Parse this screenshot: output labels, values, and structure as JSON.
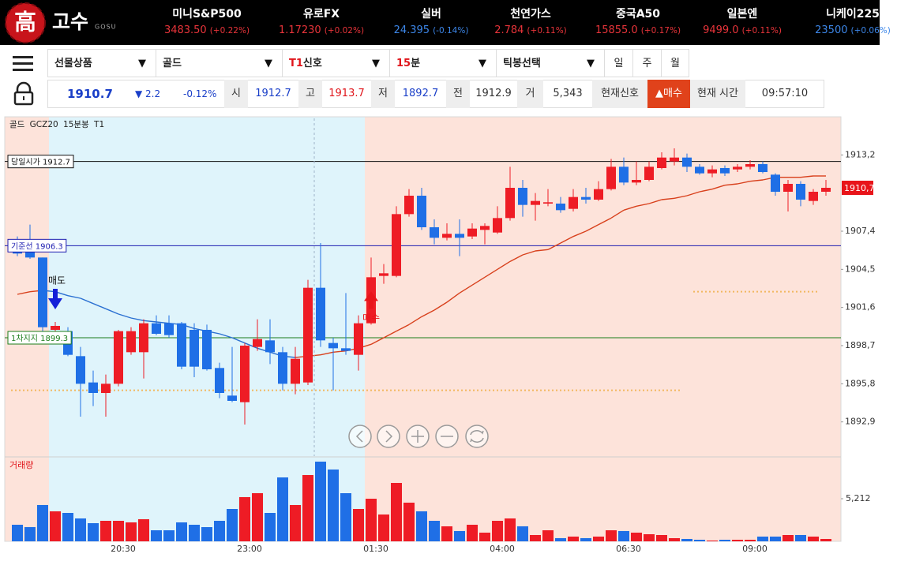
{
  "header": {
    "logo_mark": "高",
    "logo_text": "고수",
    "logo_sub": "GOSU",
    "tickers": [
      {
        "name": "미니S&P500",
        "price": "3483.50",
        "change": "(+0.22%)",
        "color": "#e8343a"
      },
      {
        "name": "유로FX",
        "price": "1.17230",
        "change": "(+0.02%)",
        "color": "#e8343a"
      },
      {
        "name": "실버",
        "price": "24.395",
        "change": "(-0.14%)",
        "color": "#3c86e8"
      },
      {
        "name": "천연가스",
        "price": "2.784",
        "change": "(+0.11%)",
        "color": "#e8343a"
      },
      {
        "name": "중국A50",
        "price": "15855.0",
        "change": "(+0.17%)",
        "color": "#e8343a"
      },
      {
        "name": "일본엔",
        "price": "9499.0",
        "change": "(+0.11%)",
        "color": "#e8343a"
      },
      {
        "name": "니케이225",
        "price": "23500",
        "change": "(+0.06%)",
        "color": "#3c86e8"
      }
    ]
  },
  "toolbar": {
    "selects": [
      {
        "text": "선물상품"
      },
      {
        "text": "골드"
      },
      {
        "accent": "T1",
        "text": "신호"
      },
      {
        "accent": "15",
        "text": "분"
      },
      {
        "text": "틱봉선택"
      }
    ],
    "periods": [
      "일",
      "주",
      "월"
    ]
  },
  "quote": {
    "price": "1910.7",
    "change": "▼ 2.2",
    "change_pct": "-0.12%",
    "fields": [
      {
        "label": "시",
        "value": "1912.7",
        "color": "#1a3fc8"
      },
      {
        "label": "고",
        "value": "1913.7",
        "color": "#e0141a"
      },
      {
        "label": "저",
        "value": "1892.7",
        "color": "#1a3fc8"
      },
      {
        "label": "전",
        "value": "1912.9",
        "color": "#333333"
      },
      {
        "label": "거",
        "value": "5,343",
        "color": "#333333"
      }
    ],
    "signal_label": "현재신호",
    "signal": "▲매수",
    "time_label": "현재 시간",
    "time": "09:57:10"
  },
  "chart_data": {
    "type": "candlestick",
    "title": "골드 GCZ20 15분봉 T1",
    "categories": [
      null,
      null,
      null,
      null,
      null,
      null,
      null,
      null,
      "20:30",
      null,
      null,
      null,
      null,
      null,
      null,
      null,
      null,
      null,
      "23:00",
      null,
      null,
      null,
      null,
      null,
      null,
      null,
      null,
      null,
      "01:30",
      null,
      null,
      null,
      null,
      null,
      null,
      null,
      null,
      null,
      "04:00",
      null,
      null,
      null,
      null,
      null,
      null,
      null,
      null,
      null,
      "06:30",
      null,
      null,
      null,
      null,
      null,
      null,
      null,
      null,
      null,
      "09:00",
      null,
      null,
      null,
      null,
      null,
      null
    ],
    "open": [
      1906.2,
      1905.9,
      1905.4,
      1899.9,
      1899.8,
      1897.9,
      1895.9,
      1895.1,
      1895.8,
      1898.2,
      1898.2,
      1900.4,
      1900.4,
      1900.4,
      1899.9,
      1899.9,
      1897.0,
      1894.9,
      1894.4,
      1898.6,
      1899.1,
      1898.2,
      1895.8,
      1895.9,
      1903.1,
      1898.9,
      1898.5,
      1898.0,
      1900.4,
      1904.0,
      1904.0,
      1908.7,
      1910.1,
      1907.7,
      1906.9,
      1907.2,
      1907.0,
      1907.5,
      1907.3,
      1908.4,
      1910.7,
      1909.4,
      1909.5,
      1909.5,
      1909.1,
      1910.0,
      1909.8,
      1910.6,
      1912.3,
      1911.1,
      1911.3,
      1912.2,
      1912.7,
      1913.0,
      1912.3,
      1911.8,
      1912.2,
      1912.1,
      1912.3,
      1912.5,
      1911.7,
      1910.4,
      1911.0,
      1909.7,
      1910.4
    ],
    "high": [
      1907.0,
      1907.9,
      1905.4,
      1900.5,
      1900.1,
      1898.6,
      1896.8,
      1896.5,
      1899.9,
      1900.1,
      1900.7,
      1901.0,
      1901.0,
      1900.5,
      1900.4,
      1900.3,
      1897.4,
      1898.6,
      1898.9,
      1900.7,
      1900.7,
      1898.6,
      1898.6,
      1903.7,
      1906.5,
      1899.3,
      1902.7,
      1901.0,
      1905.4,
      1904.9,
      1909.3,
      1910.6,
      1910.7,
      1908.3,
      1908.0,
      1908.3,
      1908.0,
      1908.0,
      1909.3,
      1912.3,
      1911.3,
      1910.3,
      1910.6,
      1910.0,
      1910.6,
      1910.7,
      1911.2,
      1912.9,
      1913.0,
      1912.7,
      1912.7,
      1913.4,
      1913.7,
      1913.3,
      1912.5,
      1912.4,
      1912.4,
      1912.5,
      1912.8,
      1912.7,
      1911.8,
      1911.3,
      1911.2,
      1910.6,
      1911.3
    ],
    "low": [
      1905.5,
      1905.3,
      1899.8,
      1898.9,
      1897.9,
      1893.3,
      1894.1,
      1893.3,
      1895.6,
      1898.0,
      1896.2,
      1899.5,
      1899.3,
      1896.9,
      1896.3,
      1896.8,
      1894.7,
      1894.4,
      1892.7,
      1898.3,
      1897.3,
      1895.3,
      1895.0,
      1895.7,
      1898.6,
      1895.3,
      1898.0,
      1896.8,
      1900.3,
      1903.4,
      1903.9,
      1908.5,
      1907.5,
      1906.4,
      1906.7,
      1905.5,
      1906.8,
      1906.4,
      1907.2,
      1908.2,
      1908.5,
      1908.2,
      1909.3,
      1908.8,
      1908.9,
      1909.5,
      1909.7,
      1910.5,
      1910.9,
      1910.9,
      1911.2,
      1912.1,
      1912.4,
      1911.9,
      1911.7,
      1911.5,
      1911.6,
      1911.9,
      1912.1,
      1911.8,
      1910.1,
      1908.9,
      1909.3,
      1909.4,
      1910.1
    ],
    "close": [
      1905.7,
      1905.4,
      1900.1,
      1900.2,
      1898.0,
      1895.8,
      1895.1,
      1895.8,
      1899.8,
      1899.8,
      1900.4,
      1899.6,
      1899.5,
      1897.1,
      1897.1,
      1896.9,
      1895.1,
      1894.5,
      1898.7,
      1899.2,
      1898.2,
      1895.8,
      1897.7,
      1903.1,
      1899.1,
      1898.5,
      1898.3,
      1900.4,
      1903.9,
      1904.2,
      1908.7,
      1910.1,
      1907.7,
      1906.9,
      1907.2,
      1906.9,
      1907.6,
      1907.8,
      1908.4,
      1910.7,
      1909.4,
      1909.7,
      1909.6,
      1909.0,
      1910.0,
      1909.8,
      1910.6,
      1912.3,
      1911.1,
      1911.3,
      1912.3,
      1913.0,
      1913.0,
      1912.3,
      1911.8,
      1912.1,
      1911.8,
      1912.3,
      1912.5,
      1911.9,
      1910.4,
      1911.0,
      1909.8,
      1910.4,
      1910.7
    ],
    "up_color": "#ee1c25",
    "down_color": "#1f6fe6",
    "ylim": [
      1890.3,
      1916.1
    ],
    "yticks": [
      {
        "value": 1892.9,
        "label": "1892,9"
      },
      {
        "value": 1895.8,
        "label": "1895,8"
      },
      {
        "value": 1898.7,
        "label": "1898,7"
      },
      {
        "value": 1901.6,
        "label": "1901,6"
      },
      {
        "value": 1904.5,
        "label": "1904,5"
      },
      {
        "value": 1907.4,
        "label": "1907,4"
      },
      {
        "value": 1913.2,
        "label": "1913,2"
      }
    ],
    "last_price": {
      "value": 1910.7,
      "label": "1910,7",
      "color": "#e8141a"
    },
    "moving_average": {
      "values": [
        1902.6,
        1902.8,
        1902.9,
        1902.8,
        1902.5,
        1902.3,
        1901.9,
        1901.5,
        1901.1,
        1900.8,
        1900.6,
        1900.5,
        1900.4,
        1900.3,
        1900.0,
        1899.8,
        1899.6,
        1899.3,
        1898.9,
        1898.5,
        1898.2,
        1897.9,
        1897.8,
        1897.9,
        1898.0,
        1898.2,
        1898.3,
        1898.5,
        1898.8,
        1899.3,
        1899.8,
        1900.3,
        1900.9,
        1901.4,
        1902.0,
        1902.7,
        1903.3,
        1903.9,
        1904.5,
        1905.1,
        1905.6,
        1905.9,
        1906.0,
        1906.5,
        1907.0,
        1907.4,
        1907.9,
        1908.4,
        1909.0,
        1909.3,
        1909.5,
        1909.8,
        1909.9,
        1910.1,
        1910.4,
        1910.6,
        1910.9,
        1911.0,
        1911.2,
        1911.3,
        1911.5,
        1911.5,
        1911.5,
        1911.6,
        1911.6
      ],
      "up_color": "#d8401c",
      "down_color": "#2a6fd1"
    },
    "levels": [
      {
        "label": "당일시가",
        "value": 1912.7,
        "color": "#111111"
      },
      {
        "label": "기준선",
        "value": 1906.3,
        "color": "#1d1db0"
      },
      {
        "label": "1차지지",
        "value": 1899.3,
        "color": "#1b7d1b"
      }
    ],
    "dotted_levels": [
      {
        "value": 1895.3,
        "from": 0,
        "to": 52,
        "color": "#f2b860"
      },
      {
        "value": 1902.8,
        "from": 54,
        "to": 63,
        "color": "#f2b860"
      }
    ],
    "sessions": [
      {
        "from": 0,
        "to": 2,
        "color": "#fde3da"
      },
      {
        "from": 3,
        "to": 27,
        "color": "#dff4fb"
      },
      {
        "from": 28,
        "to": 64,
        "color": "#fde3da"
      }
    ],
    "signals": [
      {
        "label": "매도",
        "kind": "sell",
        "at": 3,
        "color": "#1420d8",
        "text_color": "#111111"
      },
      {
        "label": "매수",
        "kind": "buy",
        "at": 28,
        "color": "#e8141a",
        "text_color": "#e8141a"
      }
    ],
    "volume": {
      "label": "거래량",
      "values": [
        2027,
        1737,
        4439,
        3667,
        3474,
        2799,
        2220,
        2509,
        2509,
        2316,
        2702,
        1351,
        1351,
        2316,
        2027,
        1737,
        2509,
        3957,
        5404,
        5887,
        3474,
        7817,
        4439,
        8106,
        9747,
        8782,
        5887,
        3957,
        5211,
        3281,
        7141,
        4729,
        3667,
        2509,
        1834,
        1255,
        2027,
        1062,
        2509,
        2799,
        1834,
        772,
        1351,
        386,
        579,
        386,
        579,
        1351,
        1255,
        1062,
        869,
        772,
        386,
        290,
        193,
        97,
        193,
        193,
        193,
        579,
        579,
        772,
        772,
        579,
        290
      ],
      "ylim": [
        0,
        10230
      ],
      "yticks": [
        {
          "value": 5212,
          "label": "5,212"
        }
      ]
    }
  }
}
